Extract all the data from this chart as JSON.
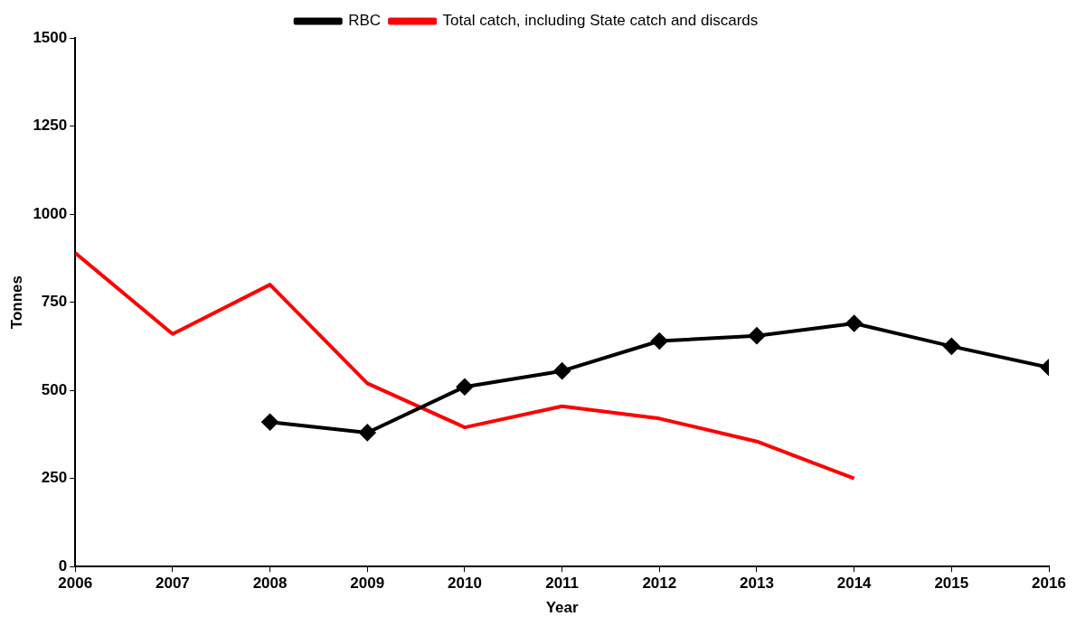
{
  "chart_data": {
    "type": "line",
    "xlabel": "Year",
    "ylabel": "Tonnes",
    "xlim": [
      2006,
      2016
    ],
    "xticks": [
      2006,
      2007,
      2008,
      2009,
      2010,
      2011,
      2012,
      2013,
      2014,
      2015,
      2016
    ],
    "ylim": [
      0,
      1500
    ],
    "yticks": [
      0,
      250,
      500,
      750,
      1000,
      1250,
      1500
    ],
    "grid": false,
    "legend": "top",
    "series": [
      {
        "name": "RBC",
        "color": "#000000",
        "marker": "diamond",
        "x": [
          2008,
          2009,
          2010,
          2011,
          2012,
          2013,
          2014,
          2015,
          2016
        ],
        "values": [
          410,
          380,
          510,
          555,
          640,
          655,
          690,
          625,
          565
        ]
      },
      {
        "name": "Total catch, including State catch and discards",
        "color": "#ff0000",
        "marker": "none",
        "x": [
          2006,
          2007,
          2008,
          2009,
          2010,
          2011,
          2012,
          2013,
          2014
        ],
        "values": [
          890,
          660,
          800,
          520,
          395,
          455,
          420,
          355,
          250
        ]
      }
    ]
  }
}
